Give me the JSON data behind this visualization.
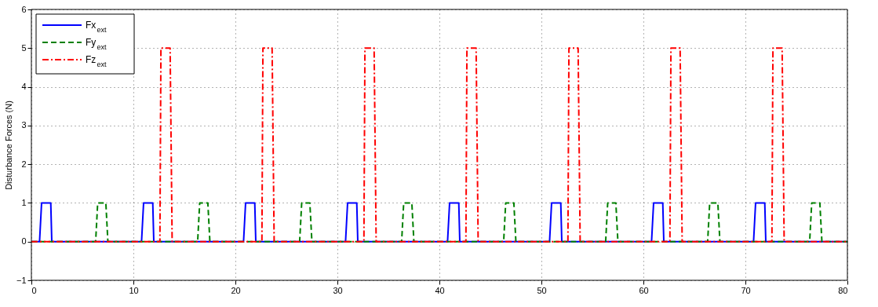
{
  "chart_data": {
    "type": "line",
    "ylabel": "Disturbance Forces (N)",
    "xlim": [
      0,
      80
    ],
    "xticks": [
      0,
      10,
      20,
      30,
      40,
      50,
      60,
      70,
      80
    ],
    "ylim": [
      -1,
      6
    ],
    "yticks": [
      -1,
      0,
      1,
      2,
      3,
      4,
      5,
      6
    ],
    "grid": true,
    "legend": "top left",
    "marker": "none",
    "series": [
      {
        "name": "Fx$_{ext}$",
        "color": "#0000ff",
        "line_style": "solid",
        "x": [
          0,
          0.8,
          1.0,
          1.9,
          2.0,
          10.8,
          11.0,
          11.9,
          12.0,
          20.8,
          21.0,
          21.9,
          22.0,
          30.8,
          31.0,
          31.9,
          32.0,
          40.8,
          41.0,
          41.9,
          42.0,
          50.8,
          51.0,
          51.9,
          52.0,
          60.8,
          61.0,
          61.9,
          62.0,
          70.8,
          71.0,
          71.9,
          72.0,
          80
        ],
        "values": [
          0,
          0,
          1,
          1,
          0,
          0,
          1,
          1,
          0,
          0,
          1,
          1,
          0,
          0,
          1,
          1,
          0,
          0,
          1,
          1,
          0,
          0,
          1,
          1,
          0,
          0,
          1,
          1,
          0,
          0,
          1,
          1,
          0,
          0
        ]
      },
      {
        "name": "Fy$_{ext}$",
        "color": "#008000",
        "line_style": "dashed",
        "x": [
          0,
          6.3,
          6.5,
          7.3,
          7.5,
          16.3,
          16.5,
          17.3,
          17.5,
          26.3,
          26.5,
          27.3,
          27.5,
          36.3,
          36.5,
          37.3,
          37.5,
          46.3,
          46.5,
          47.3,
          47.5,
          56.3,
          56.5,
          57.3,
          57.5,
          66.3,
          66.5,
          67.3,
          67.5,
          76.3,
          76.5,
          77.3,
          77.5,
          80
        ],
        "values": [
          0,
          0,
          1,
          1,
          0,
          0,
          1,
          1,
          0,
          0,
          1,
          1,
          0,
          0,
          1,
          1,
          0,
          0,
          1,
          1,
          0,
          0,
          1,
          1,
          0,
          0,
          1,
          1,
          0,
          0,
          1,
          1,
          0,
          0
        ]
      },
      {
        "name": "Fz$_{ext}$",
        "color": "#ff0000",
        "line_style": "dashdot",
        "x": [
          0,
          12.6,
          12.7,
          13.6,
          13.8,
          22.6,
          22.7,
          23.6,
          23.8,
          32.6,
          32.7,
          33.6,
          33.8,
          42.6,
          42.7,
          43.6,
          43.8,
          52.6,
          52.7,
          53.6,
          53.8,
          62.6,
          62.7,
          63.6,
          63.8,
          72.6,
          72.7,
          73.6,
          73.8,
          80
        ],
        "values": [
          0,
          0,
          5,
          5,
          0,
          0,
          5,
          5,
          0,
          0,
          5,
          5,
          0,
          0,
          5,
          5,
          0,
          0,
          5,
          5,
          0,
          0,
          5,
          5,
          0,
          0,
          5,
          5,
          0,
          0
        ]
      }
    ]
  }
}
